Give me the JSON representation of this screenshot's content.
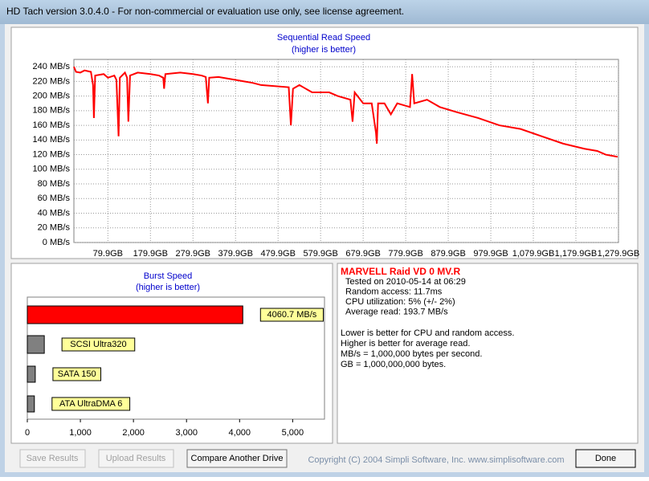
{
  "window": {
    "title": "HD Tach version 3.0.4.0  - For non-commercial or evaluation use only, see license agreement."
  },
  "read_chart": {
    "type": "line",
    "title": "Sequential Read Speed",
    "subtitle": "(higher is better)",
    "color": "#ff0000",
    "grid": true,
    "x": [
      0,
      5,
      15,
      25,
      40,
      45,
      47,
      50,
      70,
      80,
      95,
      100,
      105,
      108,
      120,
      125,
      128,
      132,
      150,
      180,
      200,
      210,
      212,
      215,
      250,
      280,
      300,
      310,
      315,
      318,
      340,
      380,
      400,
      420,
      440,
      505,
      510,
      515,
      530,
      560,
      600,
      620,
      650,
      655,
      660,
      680,
      700,
      710,
      712,
      715,
      730,
      745,
      760,
      790,
      795,
      800,
      830,
      860,
      900,
      950,
      1000,
      1050,
      1100,
      1150,
      1200,
      1230,
      1250,
      1278
    ],
    "values": [
      240,
      233,
      232,
      235,
      233,
      215,
      170,
      228,
      230,
      225,
      228,
      222,
      145,
      225,
      232,
      225,
      165,
      228,
      232,
      230,
      228,
      225,
      210,
      230,
      232,
      230,
      228,
      226,
      190,
      225,
      226,
      222,
      220,
      218,
      215,
      212,
      160,
      210,
      215,
      205,
      205,
      200,
      195,
      165,
      205,
      190,
      190,
      150,
      135,
      190,
      190,
      175,
      190,
      185,
      230,
      190,
      195,
      185,
      178,
      170,
      160,
      155,
      145,
      135,
      128,
      125,
      120,
      117
    ],
    "xlim": [
      0,
      1280
    ],
    "ylim": [
      0,
      250
    ],
    "xticks": [
      {
        "value": 79.9,
        "label": "79.9GB"
      },
      {
        "value": 179.9,
        "label": "179.9GB"
      },
      {
        "value": 279.9,
        "label": "279.9GB"
      },
      {
        "value": 379.9,
        "label": "379.9GB"
      },
      {
        "value": 479.9,
        "label": "479.9GB"
      },
      {
        "value": 579.9,
        "label": "579.9GB"
      },
      {
        "value": 679.9,
        "label": "679.9GB"
      },
      {
        "value": 779.9,
        "label": "779.9GB"
      },
      {
        "value": 879.9,
        "label": "879.9GB"
      },
      {
        "value": 979.9,
        "label": "979.9GB"
      },
      {
        "value": 1079.9,
        "label": "1,079.9GB"
      },
      {
        "value": 1179.9,
        "label": "1,179.9GB"
      },
      {
        "value": 1279.9,
        "label": "1,279.9GB"
      }
    ],
    "yticks": [
      {
        "value": 0,
        "label": "0 MB/s"
      },
      {
        "value": 20,
        "label": "20 MB/s"
      },
      {
        "value": 40,
        "label": "40 MB/s"
      },
      {
        "value": 60,
        "label": "60 MB/s"
      },
      {
        "value": 80,
        "label": "80 MB/s"
      },
      {
        "value": 100,
        "label": "100 MB/s"
      },
      {
        "value": 120,
        "label": "120 MB/s"
      },
      {
        "value": 140,
        "label": "140 MB/s"
      },
      {
        "value": 160,
        "label": "160 MB/s"
      },
      {
        "value": 180,
        "label": "180 MB/s"
      },
      {
        "value": 200,
        "label": "200 MB/s"
      },
      {
        "value": 220,
        "label": "220 MB/s"
      },
      {
        "value": 240,
        "label": "240 MB/s"
      }
    ]
  },
  "burst_chart": {
    "type": "hbar",
    "title": "Burst Speed",
    "subtitle": "(higher is better)",
    "categories": [
      null,
      "SCSI Ultra320",
      "SATA 150",
      "ATA UltraDMA 6"
    ],
    "values": [
      4060.7,
      320,
      150,
      133
    ],
    "value_labels": [
      "4060.7 MB/s",
      null,
      null,
      null
    ],
    "colors": [
      "#ff0000",
      "#808080",
      "#808080",
      "#808080"
    ],
    "xlim": [
      0,
      5600
    ],
    "xticks": [
      0,
      {
        "value": 1000,
        "label": "1,000"
      },
      {
        "value": 2000,
        "label": "2,000"
      },
      {
        "value": 3000,
        "label": "3,000"
      },
      {
        "value": 4000,
        "label": "4,000"
      },
      {
        "value": 5000,
        "label": "5,000"
      }
    ]
  },
  "info": {
    "drive": "MARVELL Raid VD 0 MV.R",
    "lines": [
      "Tested on 2010-05-14 at 06:29",
      "Random access: 11.7ms",
      "CPU utilization: 5% (+/- 2%)",
      "Average read: 193.7 MB/s"
    ],
    "notes": [
      "Lower is better for CPU and random access.",
      "Higher is better for average read.",
      "MB/s = 1,000,000 bytes per second.",
      "GB = 1,000,000,000 bytes."
    ]
  },
  "buttons": {
    "save": "Save Results",
    "upload": "Upload Results",
    "compare": "Compare Another Drive",
    "done": "Done"
  },
  "copyright": "Copyright (C) 2004 Simpli Software, Inc. www.simplisoftware.com"
}
